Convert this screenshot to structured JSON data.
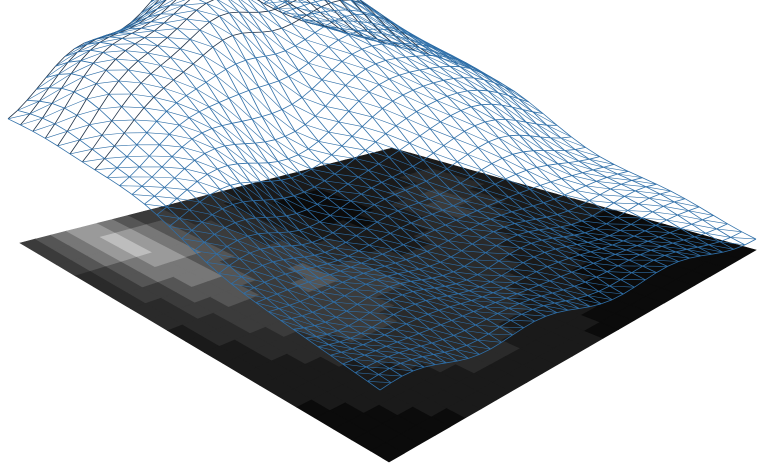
{
  "scene": {
    "background_color": "#ffffff",
    "wireframe_color": "#2f6fa8",
    "wireframe_dark_color": "#1d2f45",
    "heightmap_palette": [
      "#0b0b0b",
      "#1a1a1a",
      "#2a2a2a",
      "#3b3b3b",
      "#555555",
      "#777777",
      "#9a9a9a",
      "#bdbdbd"
    ],
    "heightmap_levels": [
      [
        3,
        4,
        5,
        6,
        6,
        5,
        4,
        3,
        3,
        2,
        2,
        2,
        2,
        1,
        1,
        1,
        1,
        1,
        1,
        1,
        1,
        1,
        1,
        1
      ],
      [
        3,
        4,
        5,
        6,
        7,
        6,
        5,
        4,
        3,
        2,
        2,
        2,
        1,
        1,
        1,
        1,
        1,
        1,
        1,
        1,
        1,
        1,
        1,
        1
      ],
      [
        3,
        4,
        5,
        6,
        7,
        6,
        5,
        4,
        3,
        3,
        2,
        2,
        1,
        1,
        0,
        0,
        0,
        1,
        1,
        1,
        1,
        1,
        1,
        1
      ],
      [
        2,
        3,
        4,
        5,
        6,
        6,
        5,
        4,
        3,
        3,
        2,
        2,
        1,
        1,
        0,
        0,
        0,
        1,
        1,
        1,
        1,
        2,
        2,
        1
      ],
      [
        2,
        3,
        4,
        5,
        5,
        5,
        4,
        4,
        3,
        3,
        2,
        2,
        1,
        1,
        0,
        0,
        0,
        1,
        1,
        2,
        2,
        2,
        2,
        1
      ],
      [
        2,
        3,
        3,
        4,
        5,
        5,
        4,
        3,
        3,
        3,
        3,
        2,
        1,
        1,
        1,
        0,
        1,
        1,
        2,
        2,
        3,
        2,
        2,
        1
      ],
      [
        2,
        2,
        3,
        4,
        4,
        4,
        4,
        3,
        3,
        3,
        3,
        2,
        2,
        1,
        1,
        1,
        1,
        1,
        2,
        3,
        3,
        2,
        1,
        1
      ],
      [
        2,
        2,
        3,
        3,
        4,
        4,
        3,
        3,
        3,
        4,
        3,
        2,
        2,
        1,
        1,
        1,
        1,
        2,
        2,
        3,
        2,
        2,
        1,
        1
      ],
      [
        1,
        2,
        2,
        3,
        3,
        3,
        3,
        3,
        4,
        4,
        3,
        3,
        2,
        2,
        1,
        1,
        2,
        2,
        2,
        2,
        2,
        1,
        1,
        1
      ],
      [
        1,
        2,
        2,
        3,
        3,
        3,
        3,
        3,
        3,
        3,
        3,
        3,
        2,
        2,
        2,
        2,
        2,
        2,
        2,
        2,
        1,
        1,
        1,
        1
      ],
      [
        1,
        1,
        2,
        2,
        3,
        3,
        3,
        3,
        3,
        3,
        3,
        3,
        2,
        2,
        2,
        2,
        2,
        2,
        2,
        1,
        1,
        1,
        1,
        1
      ],
      [
        1,
        1,
        2,
        2,
        2,
        3,
        3,
        3,
        3,
        3,
        2,
        2,
        2,
        2,
        2,
        2,
        2,
        2,
        1,
        1,
        1,
        1,
        1,
        1
      ],
      [
        1,
        1,
        1,
        2,
        2,
        2,
        3,
        3,
        3,
        2,
        2,
        2,
        2,
        2,
        2,
        2,
        2,
        1,
        1,
        1,
        1,
        0,
        0,
        0
      ],
      [
        1,
        1,
        1,
        1,
        2,
        2,
        2,
        2,
        2,
        2,
        2,
        2,
        2,
        2,
        2,
        2,
        1,
        1,
        1,
        1,
        0,
        0,
        0,
        0
      ],
      [
        1,
        1,
        1,
        1,
        1,
        2,
        2,
        2,
        2,
        2,
        2,
        2,
        2,
        2,
        2,
        1,
        1,
        1,
        1,
        0,
        0,
        0,
        0,
        0
      ],
      [
        0,
        1,
        1,
        1,
        1,
        1,
        2,
        2,
        2,
        2,
        2,
        2,
        2,
        2,
        1,
        1,
        1,
        1,
        0,
        0,
        0,
        0,
        0,
        0
      ],
      [
        0,
        0,
        1,
        1,
        1,
        1,
        1,
        2,
        2,
        2,
        2,
        2,
        1,
        1,
        1,
        1,
        1,
        0,
        0,
        0,
        0,
        0,
        0,
        0
      ],
      [
        0,
        0,
        0,
        1,
        1,
        1,
        1,
        1,
        2,
        2,
        2,
        1,
        1,
        1,
        1,
        1,
        0,
        0,
        0,
        0,
        0,
        0,
        0,
        0
      ],
      [
        0,
        0,
        0,
        0,
        1,
        1,
        1,
        1,
        1,
        1,
        1,
        1,
        1,
        1,
        1,
        0,
        0,
        0,
        0,
        0,
        0,
        0,
        0,
        0
      ],
      [
        0,
        0,
        0,
        0,
        0,
        1,
        1,
        1,
        1,
        1,
        1,
        1,
        1,
        1,
        0,
        0,
        0,
        0,
        0,
        0,
        0,
        0,
        0,
        0
      ]
    ]
  }
}
